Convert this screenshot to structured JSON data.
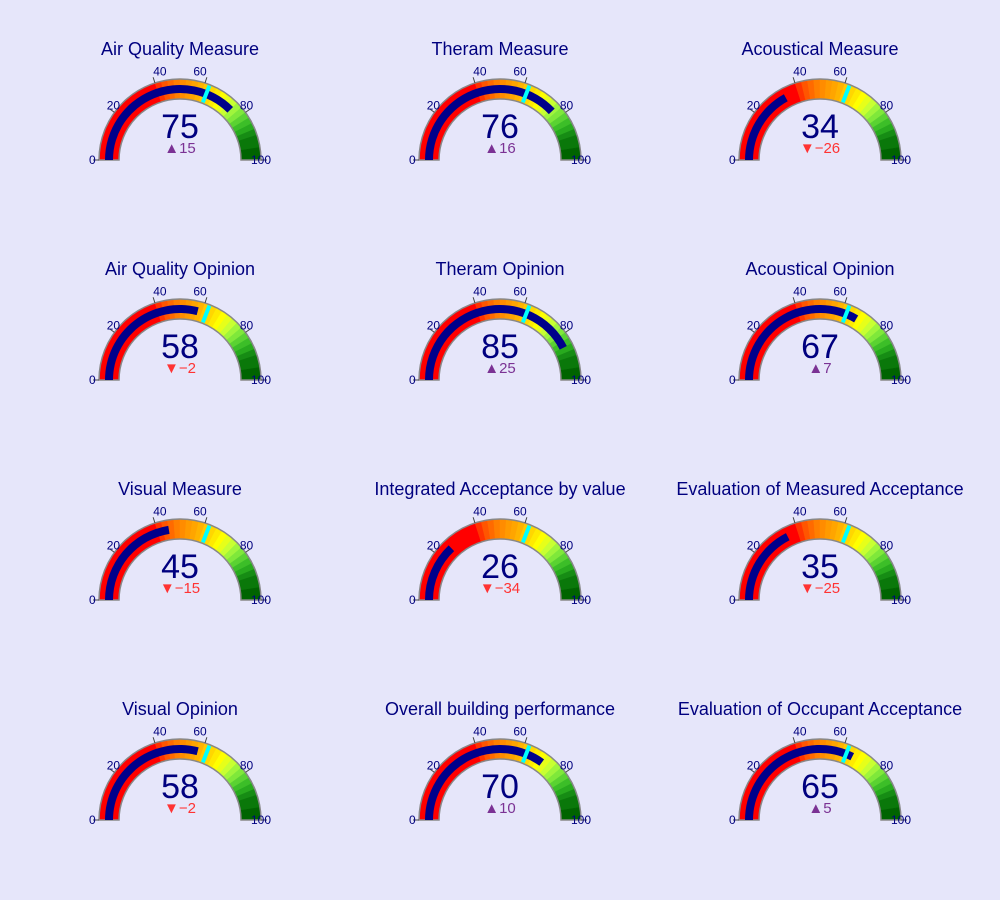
{
  "chart_data": {
    "type": "gauge",
    "axis": {
      "min": 0,
      "max": 100,
      "tick_labels": [
        "0",
        "20",
        "40",
        "60",
        "80",
        "100"
      ]
    },
    "threshold": 62,
    "steps": [
      {
        "range": [
          0,
          40
        ],
        "color": "#ff0000"
      },
      {
        "range": [
          40,
          42.5
        ],
        "color": "#ff3300"
      },
      {
        "range": [
          42.5,
          45
        ],
        "color": "#ff5500"
      },
      {
        "range": [
          45,
          47.5
        ],
        "color": "#ff6a00"
      },
      {
        "range": [
          47.5,
          50
        ],
        "color": "#ff7f00"
      },
      {
        "range": [
          50,
          52.5
        ],
        "color": "#ff8c00"
      },
      {
        "range": [
          52.5,
          55
        ],
        "color": "#ff9a00"
      },
      {
        "range": [
          55,
          57.5
        ],
        "color": "#ffa500"
      },
      {
        "range": [
          57.5,
          60
        ],
        "color": "#ffb300"
      },
      {
        "range": [
          60,
          62.5
        ],
        "color": "#ffc800"
      },
      {
        "range": [
          62.5,
          65
        ],
        "color": "#ffd700"
      },
      {
        "range": [
          65,
          67.5
        ],
        "color": "#ffea00"
      },
      {
        "range": [
          67.5,
          70
        ],
        "color": "#ffff00"
      },
      {
        "range": [
          70,
          72.5
        ],
        "color": "#e6ff1a"
      },
      {
        "range": [
          72.5,
          75
        ],
        "color": "#c8ff32"
      },
      {
        "range": [
          75,
          77.5
        ],
        "color": "#a0f53c"
      },
      {
        "range": [
          77.5,
          80
        ],
        "color": "#7fe83a"
      },
      {
        "range": [
          80,
          82.5
        ],
        "color": "#5ad232"
      },
      {
        "range": [
          82.5,
          85
        ],
        "color": "#3cbe28"
      },
      {
        "range": [
          85,
          87.5
        ],
        "color": "#28aa1e"
      },
      {
        "range": [
          87.5,
          90
        ],
        "color": "#168c14"
      },
      {
        "range": [
          90,
          95
        ],
        "color": "#0a780a"
      },
      {
        "range": [
          95,
          100
        ],
        "color": "#006400"
      }
    ],
    "colors": {
      "background": "#e6e6fa",
      "bar": "#00008b",
      "threshold": "#00ffff",
      "text": "#00007f",
      "delta_up": "#7b3294",
      "delta_down": "#ff3333",
      "border": "#888888"
    },
    "gauges": [
      {
        "title": "Air Quality Measure",
        "value": 75,
        "delta": 15
      },
      {
        "title": "Theram Measure",
        "value": 76,
        "delta": 16
      },
      {
        "title": "Acoustical Measure",
        "value": 34,
        "delta": -26
      },
      {
        "title": "Air Quality Opinion",
        "value": 58,
        "delta": -2
      },
      {
        "title": "Theram Opinion",
        "value": 85,
        "delta": 25
      },
      {
        "title": "Acoustical Opinion",
        "value": 67,
        "delta": 7
      },
      {
        "title": "Visual Measure",
        "value": 45,
        "delta": -15
      },
      {
        "title": "Integrated Acceptance by value",
        "value": 26,
        "delta": -34
      },
      {
        "title": "Evaluation of Measured Acceptance",
        "value": 35,
        "delta": -25
      },
      {
        "title": "Visual Opinion",
        "value": 58,
        "delta": -2
      },
      {
        "title": "Overall building performance",
        "value": 70,
        "delta": 10
      },
      {
        "title": "Evaluation of Occupant Acceptance",
        "value": 65,
        "delta": 5
      }
    ]
  }
}
